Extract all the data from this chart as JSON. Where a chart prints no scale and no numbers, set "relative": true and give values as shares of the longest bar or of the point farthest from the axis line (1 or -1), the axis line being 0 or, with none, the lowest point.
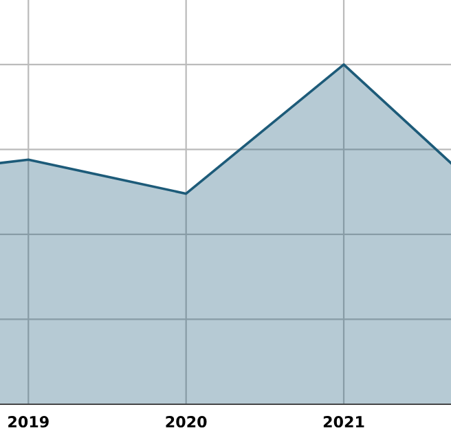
{
  "chart_data": {
    "type": "area",
    "relative": true,
    "x": [
      2018.82,
      2019,
      2020,
      2021,
      2021.68
    ],
    "xlim": [
      2018.82,
      2021.68
    ],
    "xticks": [
      2019,
      2020,
      2021
    ],
    "grid": true,
    "series": [
      {
        "color": "#1d5b79",
        "values": [
          0.71,
          0.72,
          0.62,
          1,
          0.71
        ]
      }
    ]
  }
}
